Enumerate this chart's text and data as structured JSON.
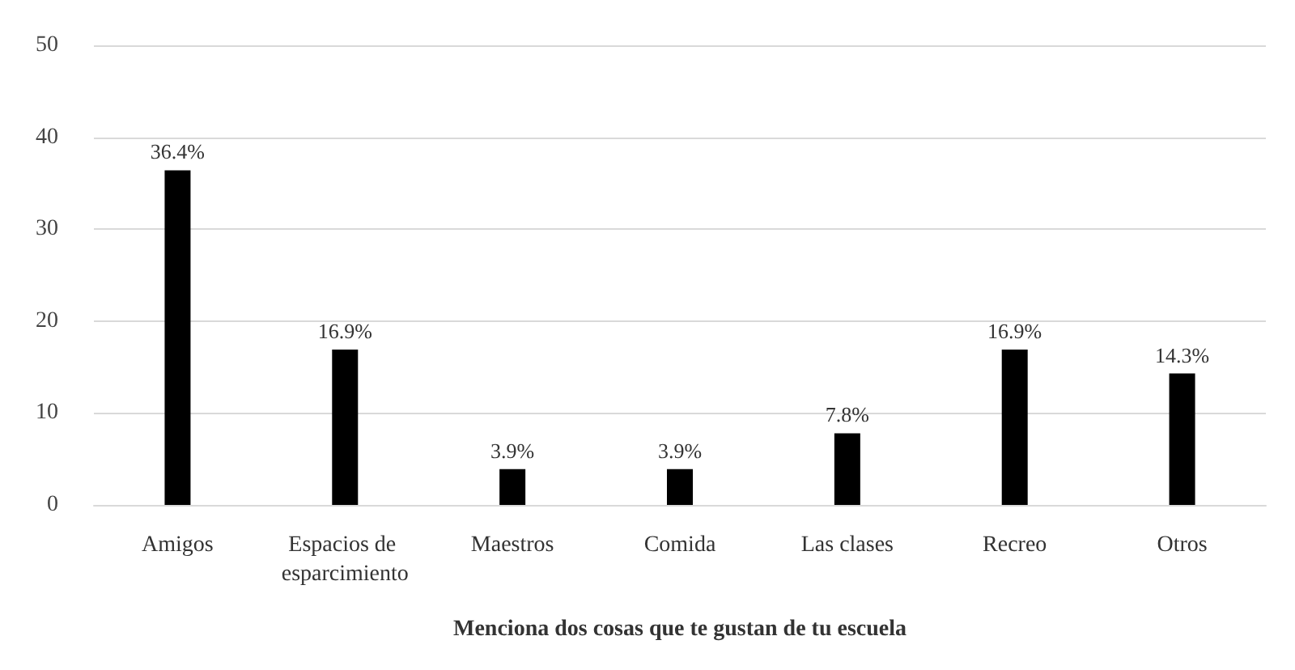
{
  "chart_data": {
    "type": "bar",
    "xlabel": "Menciona dos cosas que te gustan de tu escuela",
    "categories": [
      "Amigos",
      "Espacios de esparcimiento",
      "Maestros",
      "Comida",
      "Las clases",
      "Recreo",
      "Otros"
    ],
    "values": [
      36.4,
      16.9,
      3.9,
      3.9,
      7.8,
      16.9,
      14.3
    ],
    "value_labels": [
      "36.4%",
      "16.9%",
      "3.9%",
      "3.9%",
      "7.8%",
      "16.9%",
      "14.3%"
    ],
    "color": "#000000",
    "ylim": [
      0,
      50
    ],
    "yticks": [
      0,
      10,
      20,
      30,
      40,
      50
    ],
    "grid": "y"
  }
}
